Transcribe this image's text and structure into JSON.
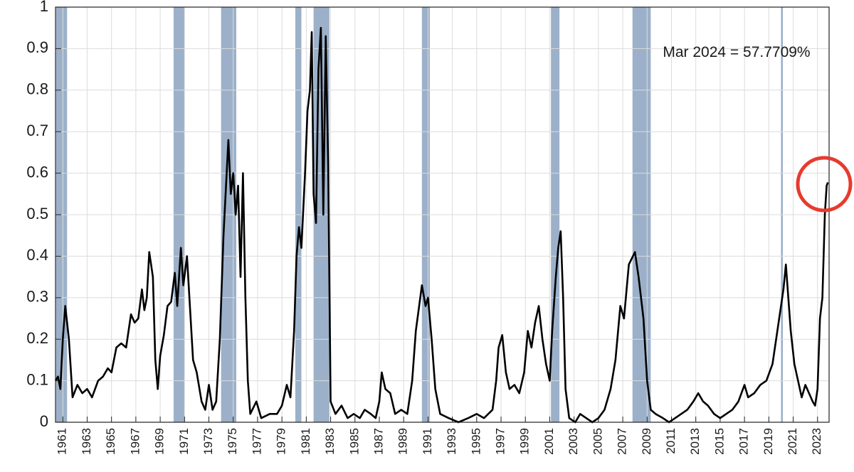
{
  "chart_data": {
    "type": "line",
    "annotation": "Mar 2024 = 57.7709%",
    "color": "#000000",
    "shade_color": "#9cb0c9",
    "grid": true,
    "xlim": [
      1960.4,
      2023.95
    ],
    "ylim": [
      0,
      1
    ],
    "xticks": [
      1961,
      1963,
      1965,
      1967,
      1969,
      1971,
      1973,
      1975,
      1977,
      1979,
      1981,
      1983,
      1985,
      1987,
      1989,
      1991,
      1993,
      1995,
      1997,
      1999,
      2001,
      2003,
      2005,
      2007,
      2009,
      2011,
      2013,
      2015,
      2017,
      2019,
      2021,
      2023
    ],
    "yticks": [
      0,
      0.1,
      0.2,
      0.3,
      0.4,
      0.5,
      0.6,
      0.7,
      0.8,
      0.9,
      1
    ],
    "recessions": [
      [
        1960.45,
        1961.35
      ],
      [
        1970.1,
        1971.0
      ],
      [
        1974.0,
        1975.25
      ],
      [
        1980.1,
        1980.6
      ],
      [
        1981.6,
        1982.9
      ],
      [
        1990.5,
        1991.15
      ],
      [
        2001.1,
        2001.8
      ],
      [
        2007.8,
        2009.3
      ],
      [
        2020.0,
        2020.15
      ]
    ],
    "x": [
      1960.4,
      1960.6,
      1960.8,
      1961.0,
      1961.2,
      1961.5,
      1961.8,
      1962.2,
      1962.6,
      1963.0,
      1963.4,
      1963.9,
      1964.3,
      1964.7,
      1965.0,
      1965.4,
      1965.8,
      1966.2,
      1966.6,
      1966.9,
      1967.2,
      1967.5,
      1967.7,
      1967.9,
      1968.1,
      1968.4,
      1968.6,
      1968.8,
      1969.0,
      1969.3,
      1969.6,
      1969.9,
      1970.2,
      1970.4,
      1970.7,
      1970.9,
      1971.2,
      1971.4,
      1971.7,
      1972.0,
      1972.4,
      1972.7,
      1973.0,
      1973.3,
      1973.6,
      1973.9,
      1974.2,
      1974.6,
      1974.8,
      1975.0,
      1975.2,
      1975.4,
      1975.6,
      1975.8,
      1976.0,
      1976.2,
      1976.4,
      1976.9,
      1977.3,
      1978.0,
      1978.6,
      1979.0,
      1979.4,
      1979.7,
      1980.0,
      1980.2,
      1980.4,
      1980.6,
      1980.9,
      1981.1,
      1981.3,
      1981.45,
      1981.6,
      1981.8,
      1982.0,
      1982.2,
      1982.4,
      1982.6,
      1982.8,
      1983.0,
      1983.4,
      1983.9,
      1984.4,
      1984.9,
      1985.4,
      1985.8,
      1986.3,
      1986.7,
      1987.0,
      1987.2,
      1987.5,
      1987.9,
      1988.3,
      1988.8,
      1989.3,
      1989.7,
      1990.0,
      1990.5,
      1990.8,
      1991.0,
      1991.3,
      1991.6,
      1992.0,
      1992.7,
      1993.5,
      1994.3,
      1995.0,
      1995.6,
      1996.3,
      1996.6,
      1996.8,
      1997.1,
      1997.4,
      1997.7,
      1998.1,
      1998.5,
      1998.9,
      1999.2,
      1999.5,
      1999.8,
      2000.1,
      2000.4,
      2000.7,
      2001.0,
      2001.2,
      2001.5,
      2001.7,
      2001.9,
      2002.1,
      2002.3,
      2002.6,
      2003.1,
      2003.5,
      2004.0,
      2004.5,
      2005.0,
      2005.5,
      2006.0,
      2006.4,
      2006.8,
      2007.1,
      2007.5,
      2008.0,
      2008.3,
      2008.5,
      2008.7,
      2009.0,
      2009.3,
      2009.7,
      2010.3,
      2010.8,
      2011.3,
      2011.8,
      2012.3,
      2012.8,
      2013.2,
      2013.6,
      2014.0,
      2014.5,
      2015.0,
      2015.5,
      2016.0,
      2016.5,
      2017.0,
      2017.3,
      2017.8,
      2018.3,
      2018.8,
      2019.3,
      2019.7,
      2020.0,
      2020.2,
      2020.4,
      2020.6,
      2020.8,
      2021.1,
      2021.4,
      2021.7,
      2022.0,
      2022.3,
      2022.6,
      2022.8,
      2023.0,
      2023.2,
      2023.4,
      2023.6,
      2023.75,
      2023.85
    ],
    "values": [
      0.1,
      0.11,
      0.08,
      0.2,
      0.28,
      0.2,
      0.06,
      0.09,
      0.07,
      0.08,
      0.06,
      0.1,
      0.11,
      0.13,
      0.12,
      0.18,
      0.19,
      0.18,
      0.26,
      0.24,
      0.25,
      0.32,
      0.27,
      0.3,
      0.41,
      0.35,
      0.15,
      0.08,
      0.16,
      0.21,
      0.28,
      0.29,
      0.36,
      0.28,
      0.42,
      0.33,
      0.4,
      0.3,
      0.15,
      0.12,
      0.05,
      0.03,
      0.09,
      0.03,
      0.05,
      0.2,
      0.45,
      0.68,
      0.55,
      0.6,
      0.5,
      0.57,
      0.35,
      0.6,
      0.3,
      0.1,
      0.02,
      0.05,
      0.01,
      0.02,
      0.02,
      0.04,
      0.09,
      0.06,
      0.22,
      0.4,
      0.47,
      0.42,
      0.6,
      0.75,
      0.8,
      0.94,
      0.55,
      0.48,
      0.85,
      0.95,
      0.5,
      0.93,
      0.62,
      0.05,
      0.02,
      0.04,
      0.01,
      0.02,
      0.01,
      0.03,
      0.02,
      0.01,
      0.05,
      0.12,
      0.08,
      0.07,
      0.02,
      0.03,
      0.02,
      0.1,
      0.22,
      0.33,
      0.28,
      0.3,
      0.2,
      0.08,
      0.02,
      0.01,
      0.0,
      0.01,
      0.02,
      0.01,
      0.03,
      0.1,
      0.18,
      0.21,
      0.12,
      0.08,
      0.09,
      0.07,
      0.12,
      0.22,
      0.18,
      0.24,
      0.28,
      0.2,
      0.14,
      0.1,
      0.22,
      0.35,
      0.42,
      0.46,
      0.3,
      0.08,
      0.01,
      0.0,
      0.02,
      0.01,
      0.0,
      0.01,
      0.03,
      0.08,
      0.15,
      0.28,
      0.25,
      0.38,
      0.41,
      0.35,
      0.3,
      0.25,
      0.1,
      0.03,
      0.02,
      0.01,
      0.0,
      0.01,
      0.02,
      0.03,
      0.05,
      0.07,
      0.05,
      0.04,
      0.02,
      0.01,
      0.02,
      0.03,
      0.05,
      0.09,
      0.06,
      0.07,
      0.09,
      0.1,
      0.14,
      0.22,
      0.28,
      0.32,
      0.38,
      0.3,
      0.22,
      0.14,
      0.1,
      0.06,
      0.09,
      0.07,
      0.05,
      0.04,
      0.08,
      0.25,
      0.3,
      0.5,
      0.57,
      0.577709
    ]
  }
}
